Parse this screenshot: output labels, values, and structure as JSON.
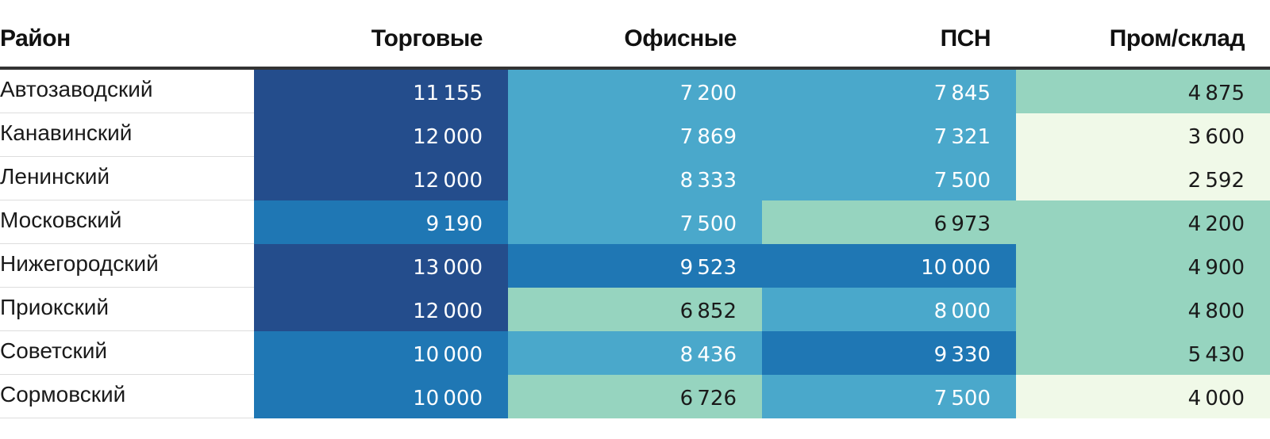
{
  "chart_data": {
    "type": "table",
    "columns": [
      "Район",
      "Торговые",
      "Офисные",
      "ПСН",
      "Пром/склад"
    ],
    "rows": [
      {
        "district": "Автозаводский",
        "values": [
          11155,
          7200,
          7845,
          4875
        ]
      },
      {
        "district": "Канавинский",
        "values": [
          12000,
          7869,
          7321,
          3600
        ]
      },
      {
        "district": "Ленинский",
        "values": [
          12000,
          8333,
          7500,
          2592
        ]
      },
      {
        "district": "Московский",
        "values": [
          9190,
          7500,
          6973,
          4200
        ]
      },
      {
        "district": "Нижегородский",
        "values": [
          13000,
          9523,
          10000,
          4900
        ]
      },
      {
        "district": "Приокский",
        "values": [
          12000,
          6852,
          8000,
          4800
        ]
      },
      {
        "district": "Советский",
        "values": [
          10000,
          8436,
          9330,
          5430
        ]
      },
      {
        "district": "Сормовский",
        "values": [
          10000,
          6726,
          7500,
          4000
        ]
      }
    ],
    "color_scale": [
      {
        "max": 4000,
        "bg": "#f0f9e8",
        "fg": "#1a1a1a"
      },
      {
        "max": 7000,
        "bg": "#96d4bf",
        "fg": "#1a1a1a"
      },
      {
        "max": 9000,
        "bg": "#4aa8cb",
        "fg": "#ffffff"
      },
      {
        "max": 11000,
        "bg": "#1f77b4",
        "fg": "#ffffff"
      },
      {
        "max": 1000000,
        "bg": "#244d8c",
        "fg": "#ffffff"
      }
    ]
  }
}
